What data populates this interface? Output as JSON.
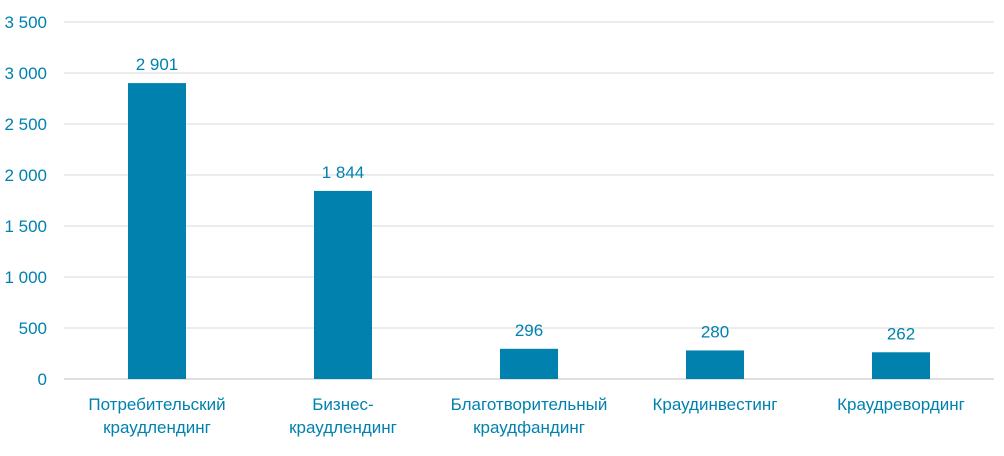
{
  "chart_data": {
    "type": "bar",
    "title": "",
    "xlabel": "",
    "ylabel": "",
    "categories": [
      [
        "Потребительский",
        "краудлендинг"
      ],
      [
        "Бизнес-",
        "краудлендинг"
      ],
      [
        "Благотворительный",
        "краудфандинг"
      ],
      [
        "Краудинвестинг"
      ],
      [
        "Краудревординг"
      ]
    ],
    "values": [
      2901,
      1844,
      296,
      280,
      262
    ],
    "value_labels": [
      "2 901",
      "1 844",
      "296",
      "280",
      "262"
    ],
    "ylim": [
      0,
      3500
    ],
    "yticks": [
      0,
      500,
      1000,
      1500,
      2000,
      2500,
      3000,
      3500
    ],
    "ytick_labels": [
      "0",
      "500",
      "1 000",
      "1 500",
      "2 000",
      "2 500",
      "3 000",
      "3 500"
    ],
    "grid": true,
    "legend": "none",
    "colors": {
      "bar": "#0081ae",
      "text": "#0081ae",
      "grid": "#d9d9d9"
    }
  }
}
